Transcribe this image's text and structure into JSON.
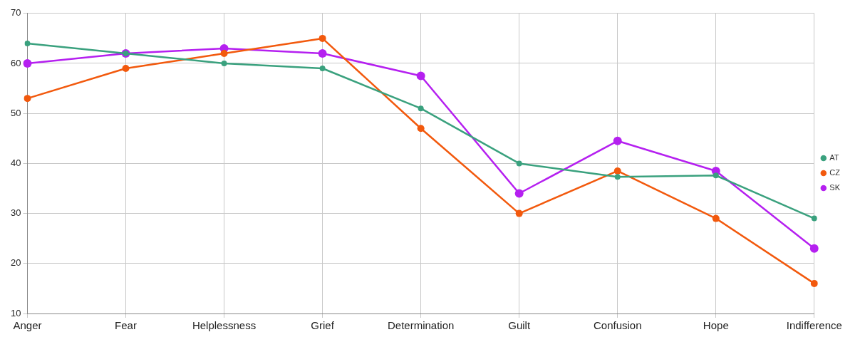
{
  "chart_data": {
    "type": "line",
    "categories": [
      "Anger",
      "Fear",
      "Helplessness",
      "Grief",
      "Determination",
      "Guilt",
      "Confusion",
      "Hope",
      "Indifference"
    ],
    "series": [
      {
        "name": "AT",
        "color": "#3aa17e",
        "values": [
          64,
          62,
          60,
          59,
          51,
          40,
          37.3,
          37.6,
          29
        ]
      },
      {
        "name": "CZ",
        "color": "#f2590d",
        "values": [
          53,
          59,
          62,
          65,
          47,
          30,
          38.5,
          29,
          16
        ]
      },
      {
        "name": "SK",
        "color": "#b520f0",
        "values": [
          60,
          62,
          63,
          62,
          57.5,
          34,
          44.5,
          38.5,
          23
        ]
      }
    ],
    "ylim": [
      10,
      70
    ],
    "yticks": [
      10,
      20,
      30,
      40,
      50,
      60,
      70
    ],
    "grid": true,
    "legend": "right",
    "marker": "circle",
    "line_style": "solid"
  }
}
